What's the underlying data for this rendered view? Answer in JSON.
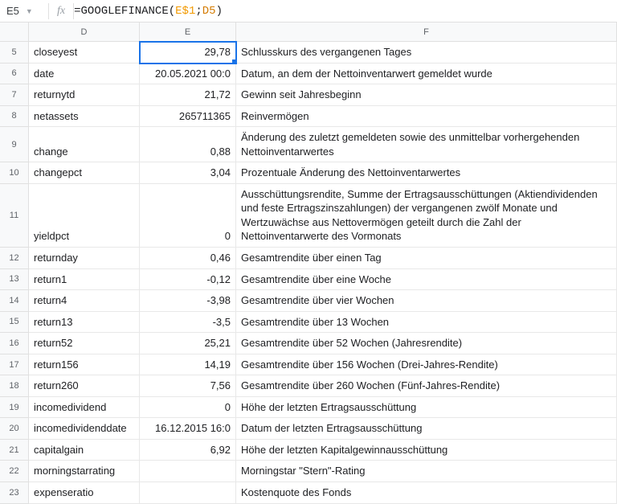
{
  "formula_bar": {
    "cell_ref": "E5",
    "fx_label": "fx",
    "formula_prefix": "=",
    "formula_fn": "GOOGLEFINANCE",
    "formula_open": "(",
    "formula_arg1": "E$1",
    "formula_sep": ";",
    "formula_arg2": "D5",
    "formula_close": ")"
  },
  "columns": {
    "rownum": "",
    "d": "D",
    "e": "E",
    "f": "F"
  },
  "rows": [
    {
      "n": "5",
      "h": "short",
      "d": "closeyest",
      "e": "29,78",
      "f": "Schlusskurs des vergangenen Tages",
      "active": true
    },
    {
      "n": "6",
      "h": "short",
      "d": "date",
      "e": "20.05.2021 00:0",
      "f": "Datum, an dem der Nettoinventarwert gemeldet wurde"
    },
    {
      "n": "7",
      "h": "short",
      "d": "returnytd",
      "e": "21,72",
      "f": "Gewinn seit Jahresbeginn"
    },
    {
      "n": "8",
      "h": "short",
      "d": "netassets",
      "e": "265711365",
      "f": "Reinvermögen"
    },
    {
      "n": "9",
      "h": "tall-2",
      "d": "change",
      "e": "0,88",
      "f": "Änderung des zuletzt gemeldeten sowie des unmittelbar vorhergehenden Nettoinventarwertes"
    },
    {
      "n": "10",
      "h": "short",
      "d": "changepct",
      "e": "3,04",
      "f": "Prozentuale Änderung des Nettoinventarwertes"
    },
    {
      "n": "11",
      "h": "tall-4",
      "d": "yieldpct",
      "e": "0",
      "f": "Ausschüttungsrendite, Summe der Ertragsausschüttungen (Aktiendividenden und feste Ertragszinszahlungen) der vergangenen zwölf Monate und Wertzuwächse aus Nettovermögen geteilt durch die Zahl der Nettoinventarwerte des Vormonats"
    },
    {
      "n": "12",
      "h": "short",
      "d": "returnday",
      "e": "0,46",
      "f": "Gesamtrendite über einen Tag"
    },
    {
      "n": "13",
      "h": "short",
      "d": "return1",
      "e": "-0,12",
      "f": "Gesamtrendite über eine Woche"
    },
    {
      "n": "14",
      "h": "short",
      "d": "return4",
      "e": "-3,98",
      "f": "Gesamtrendite über vier Wochen"
    },
    {
      "n": "15",
      "h": "short",
      "d": "return13",
      "e": "-3,5",
      "f": "Gesamtrendite über 13 Wochen"
    },
    {
      "n": "16",
      "h": "short",
      "d": "return52",
      "e": "25,21",
      "f": "Gesamtrendite über 52 Wochen (Jahresrendite)"
    },
    {
      "n": "17",
      "h": "short",
      "d": "return156",
      "e": "14,19",
      "f": "Gesamtrendite über 156 Wochen (Drei-Jahres-Rendite)"
    },
    {
      "n": "18",
      "h": "short",
      "d": "return260",
      "e": "7,56",
      "f": "Gesamtrendite über 260 Wochen (Fünf-Jahres-Rendite)"
    },
    {
      "n": "19",
      "h": "short",
      "d": "incomedividend",
      "e": "0",
      "f": "Höhe der letzten Ertragsausschüttung"
    },
    {
      "n": "20",
      "h": "short",
      "d": "incomedividenddate",
      "e": "16.12.2015 16:0",
      "f": "Datum der letzten Ertragsausschüttung"
    },
    {
      "n": "21",
      "h": "short",
      "d": "capitalgain",
      "e": "6,92",
      "f": "Höhe der letzten Kapitalgewinnausschüttung"
    },
    {
      "n": "22",
      "h": "short",
      "d": "morningstarrating",
      "e": "",
      "f": "Morningstar \"Stern\"-Rating"
    },
    {
      "n": "23",
      "h": "short",
      "d": "expenseratio",
      "e": "",
      "f": "Kostenquote des Fonds"
    }
  ]
}
